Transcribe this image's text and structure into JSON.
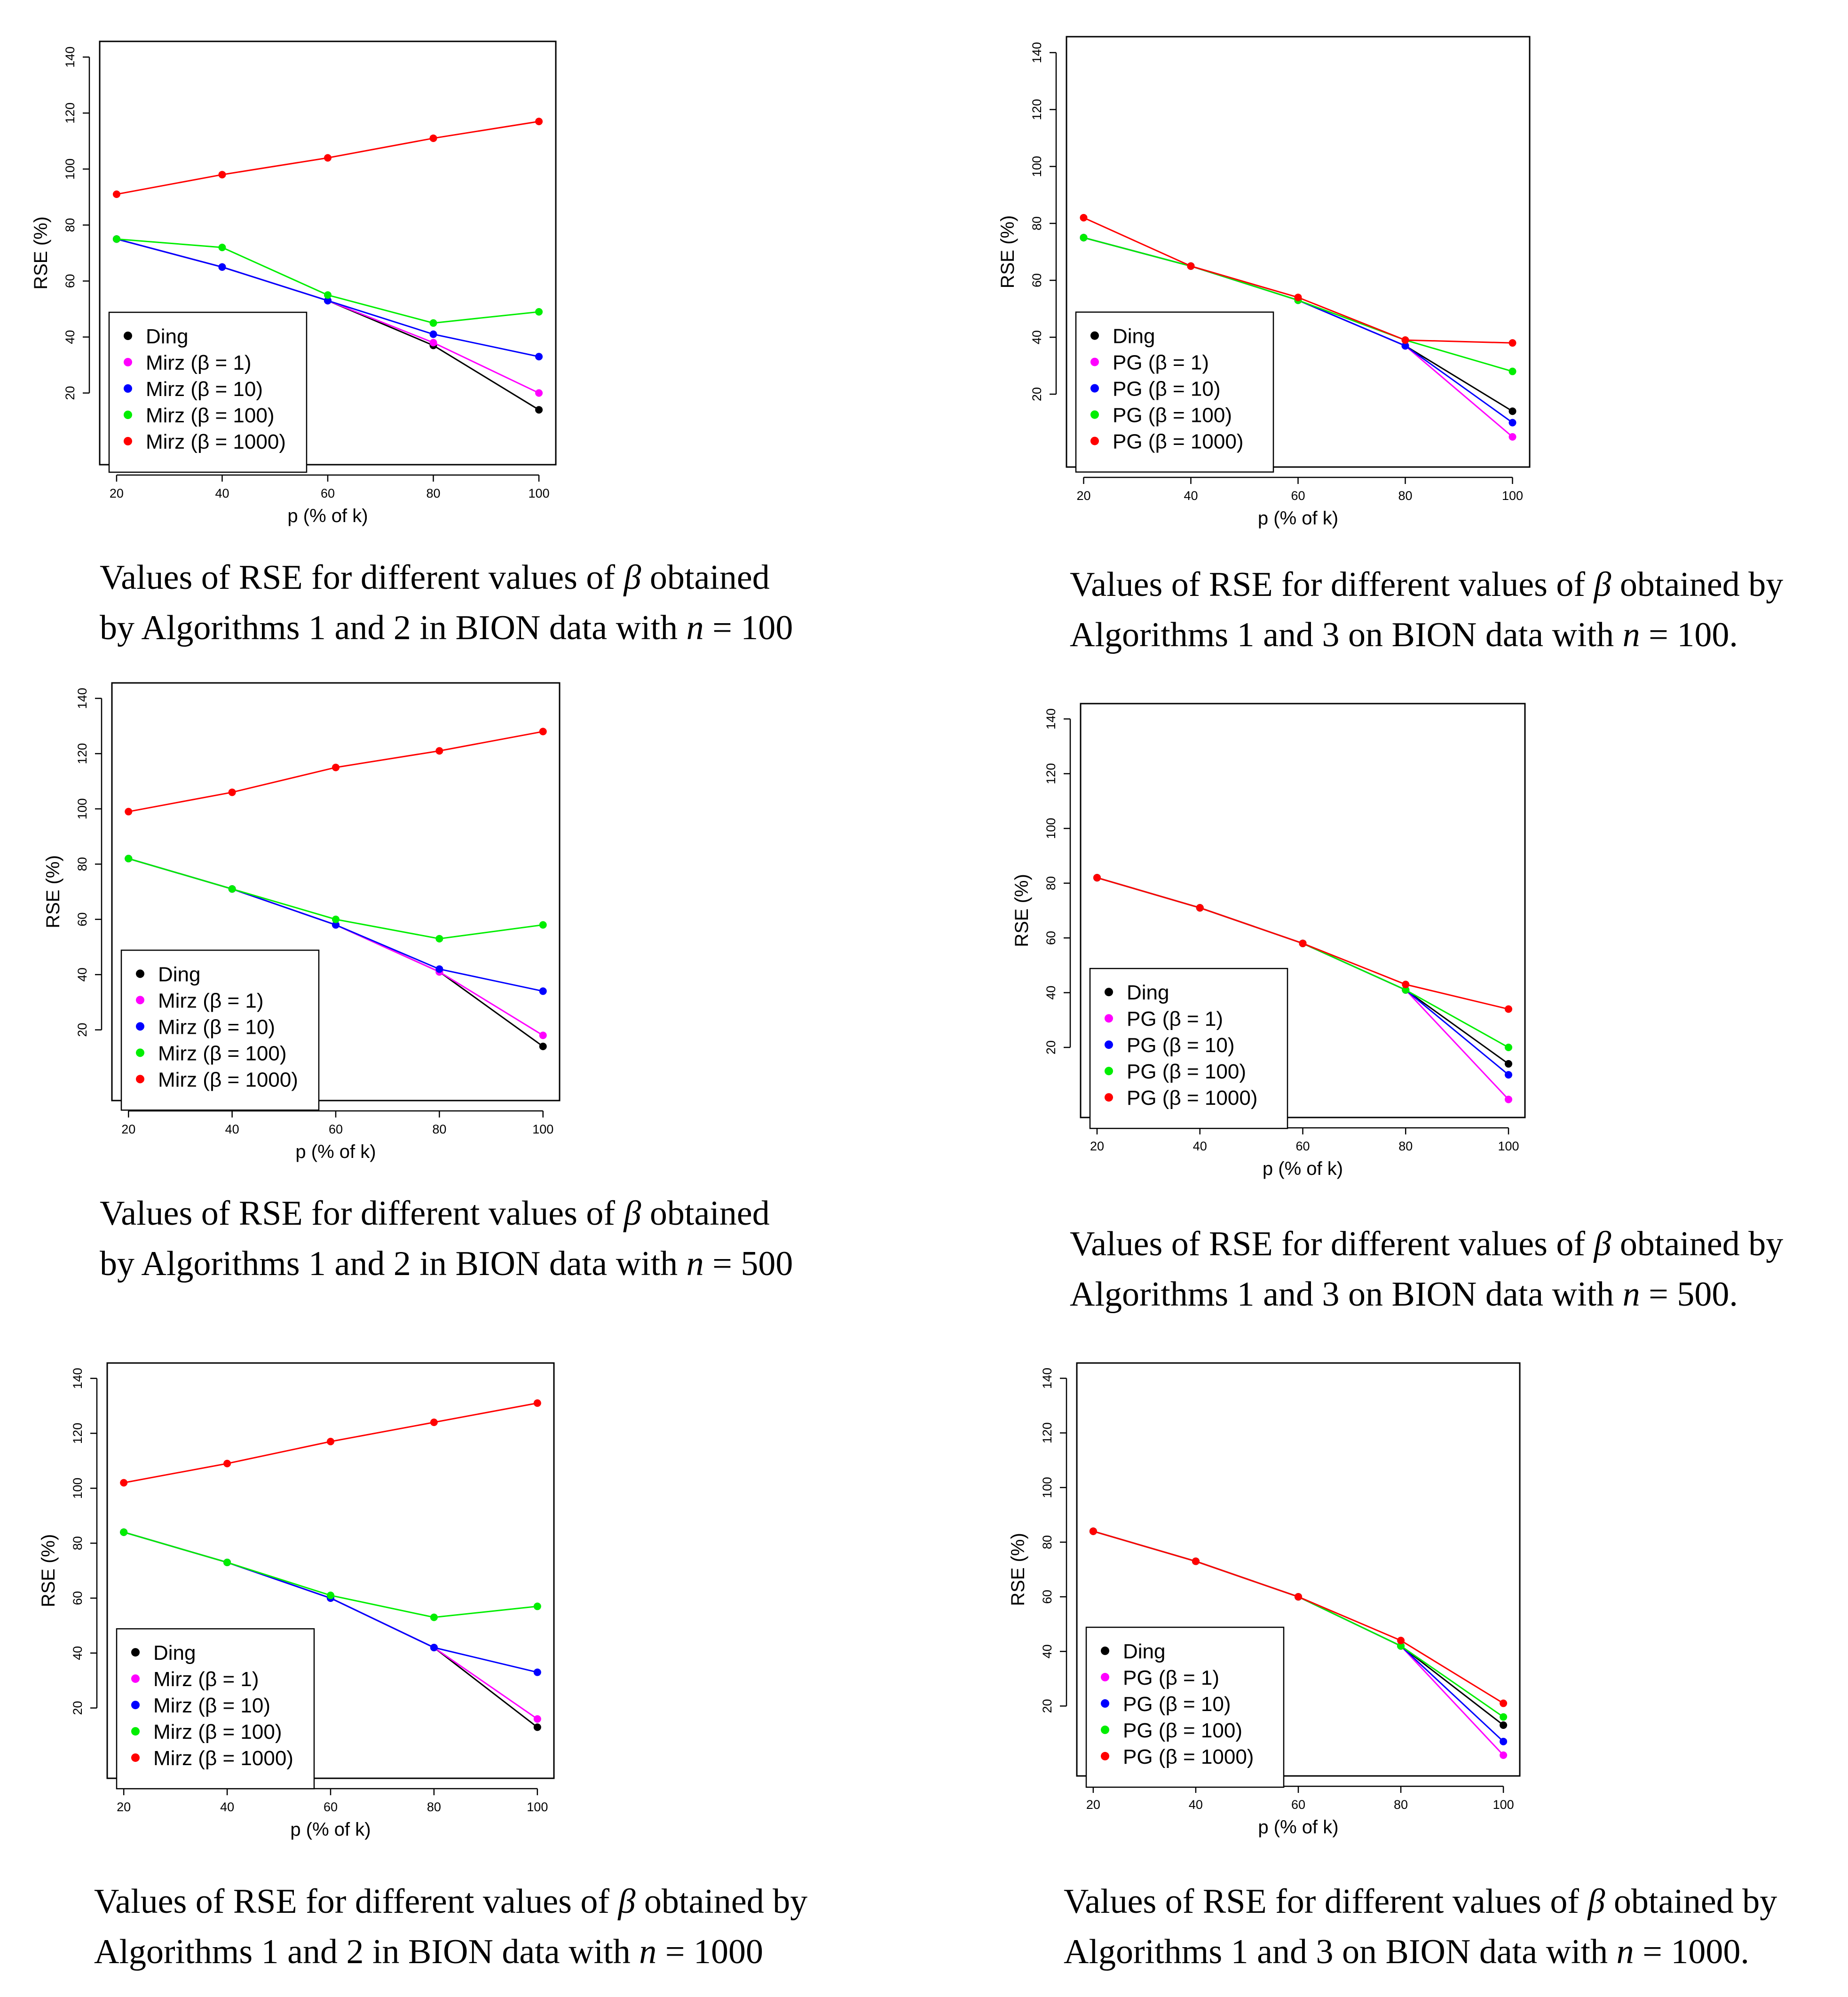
{
  "colors": {
    "Ding": "#000000",
    "b1": "#ff00ff",
    "b10": "#0000ff",
    "b100": "#00ee00",
    "b1000": "#ff0000"
  },
  "charts": [
    {
      "chart_data": {
        "type": "line",
        "xlabel": "p (% of k)",
        "ylabel": "RSE (%)",
        "x": [
          20,
          40,
          60,
          80,
          100
        ],
        "xlim": [
          20,
          100
        ],
        "ylim": [
          0,
          140
        ],
        "xticks": [
          "20",
          "40",
          "60",
          "80",
          "100"
        ],
        "yticks": [
          "20",
          "40",
          "60",
          "80",
          "100",
          "120",
          "140"
        ],
        "legend_position": "bottom-left",
        "series": [
          {
            "name": "Ding",
            "color_key": "Ding",
            "values": [
              75,
              65,
              53,
              37,
              14
            ]
          },
          {
            "name": "Mirz (β = 1)",
            "color_key": "b1",
            "values": [
              75,
              65,
              53,
              38,
              20
            ]
          },
          {
            "name": "Mirz (β = 10)",
            "color_key": "b10",
            "values": [
              75,
              65,
              53,
              41,
              33
            ]
          },
          {
            "name": "Mirz (β = 100)",
            "color_key": "b100",
            "values": [
              75,
              72,
              55,
              45,
              49
            ]
          },
          {
            "name": "Mirz (β = 1000)",
            "color_key": "b1000",
            "values": [
              91,
              98,
              104,
              111,
              117
            ]
          }
        ]
      },
      "caption": {
        "line1_pre": "Values of RSE for different values of ",
        "beta": "β",
        "line1_post": " obtained",
        "line2_pre": "by Algorithms 1 and 2 in BION data with ",
        "n": "n",
        "eq": " = 100"
      }
    },
    {
      "chart_data": {
        "type": "line",
        "xlabel": "p (% of k)",
        "ylabel": "RSE (%)",
        "x": [
          20,
          40,
          60,
          80,
          100
        ],
        "xlim": [
          20,
          100
        ],
        "ylim": [
          0,
          140
        ],
        "xticks": [
          "20",
          "40",
          "60",
          "80",
          "100"
        ],
        "yticks": [
          "20",
          "40",
          "60",
          "80",
          "100",
          "120",
          "140"
        ],
        "legend_position": "bottom-left",
        "series": [
          {
            "name": "Ding",
            "color_key": "Ding",
            "values": [
              75,
              65,
              53,
              37,
              14
            ]
          },
          {
            "name": "PG (β = 1)",
            "color_key": "b1",
            "values": [
              75,
              65,
              53,
              37,
              5
            ]
          },
          {
            "name": "PG (β = 10)",
            "color_key": "b10",
            "values": [
              75,
              65,
              53,
              37,
              10
            ]
          },
          {
            "name": "PG (β = 100)",
            "color_key": "b100",
            "values": [
              75,
              65,
              53,
              39,
              28
            ]
          },
          {
            "name": "PG (β = 1000)",
            "color_key": "b1000",
            "values": [
              82,
              65,
              54,
              39,
              38
            ]
          }
        ]
      },
      "caption": {
        "line1_pre": "Values of RSE for different values of ",
        "beta": "β",
        "line1_post": " obtained by",
        "line2_pre": "Algorithms 1 and 3 on BION data with ",
        "n": "n",
        "eq": " = 100."
      }
    },
    {
      "chart_data": {
        "type": "line",
        "xlabel": "p (% of k)",
        "ylabel": "RSE (%)",
        "x": [
          20,
          40,
          60,
          80,
          100
        ],
        "xlim": [
          20,
          100
        ],
        "ylim": [
          0,
          140
        ],
        "xticks": [
          "20",
          "40",
          "60",
          "80",
          "100"
        ],
        "yticks": [
          "20",
          "40",
          "60",
          "80",
          "100",
          "120",
          "140"
        ],
        "legend_position": "bottom-left",
        "series": [
          {
            "name": "Ding",
            "color_key": "Ding",
            "values": [
              82,
              71,
              58,
              41,
              14
            ]
          },
          {
            "name": "Mirz (β = 1)",
            "color_key": "b1",
            "values": [
              82,
              71,
              58,
              41,
              18
            ]
          },
          {
            "name": "Mirz (β = 10)",
            "color_key": "b10",
            "values": [
              82,
              71,
              58,
              42,
              34
            ]
          },
          {
            "name": "Mirz (β = 100)",
            "color_key": "b100",
            "values": [
              82,
              71,
              60,
              53,
              58
            ]
          },
          {
            "name": "Mirz (β = 1000)",
            "color_key": "b1000",
            "values": [
              99,
              106,
              115,
              121,
              128
            ]
          }
        ]
      },
      "caption": {
        "line1_pre": "Values of RSE for different values of ",
        "beta": "β",
        "line1_post": " obtained",
        "line2_pre": "by Algorithms 1 and 2 in BION data with ",
        "n": "n",
        "eq": " = 500"
      }
    },
    {
      "chart_data": {
        "type": "line",
        "xlabel": "p (% of k)",
        "ylabel": "RSE (%)",
        "x": [
          20,
          40,
          60,
          80,
          100
        ],
        "xlim": [
          20,
          100
        ],
        "ylim": [
          0,
          140
        ],
        "xticks": [
          "20",
          "40",
          "60",
          "80",
          "100"
        ],
        "yticks": [
          "20",
          "40",
          "60",
          "80",
          "100",
          "120",
          "140"
        ],
        "legend_position": "bottom-left",
        "series": [
          {
            "name": "Ding",
            "color_key": "Ding",
            "values": [
              82,
              71,
              58,
              41,
              14
            ]
          },
          {
            "name": "PG (β = 1)",
            "color_key": "b1",
            "values": [
              82,
              71,
              58,
              41,
              1
            ]
          },
          {
            "name": "PG (β = 10)",
            "color_key": "b10",
            "values": [
              82,
              71,
              58,
              41,
              10
            ]
          },
          {
            "name": "PG (β = 100)",
            "color_key": "b100",
            "values": [
              82,
              71,
              58,
              41,
              20
            ]
          },
          {
            "name": "PG (β = 1000)",
            "color_key": "b1000",
            "values": [
              82,
              71,
              58,
              43,
              34
            ]
          }
        ]
      },
      "caption": {
        "line1_pre": "Values of RSE for different values of ",
        "beta": "β",
        "line1_post": " obtained by",
        "line2_pre": "Algorithms 1 and 3 on BION data with ",
        "n": "n",
        "eq": " = 500."
      }
    },
    {
      "chart_data": {
        "type": "line",
        "xlabel": "p (% of k)",
        "ylabel": "RSE (%)",
        "x": [
          20,
          40,
          60,
          80,
          100
        ],
        "xlim": [
          20,
          100
        ],
        "ylim": [
          0,
          140
        ],
        "xticks": [
          "20",
          "40",
          "60",
          "80",
          "100"
        ],
        "yticks": [
          "20",
          "40",
          "60",
          "80",
          "100",
          "120",
          "140"
        ],
        "legend_position": "bottom-left",
        "series": [
          {
            "name": "Ding",
            "color_key": "Ding",
            "values": [
              84,
              73,
              60,
              42,
              13
            ]
          },
          {
            "name": "Mirz (β = 1)",
            "color_key": "b1",
            "values": [
              84,
              73,
              60,
              42,
              16
            ]
          },
          {
            "name": "Mirz (β = 10)",
            "color_key": "b10",
            "values": [
              84,
              73,
              60,
              42,
              33
            ]
          },
          {
            "name": "Mirz (β = 100)",
            "color_key": "b100",
            "values": [
              84,
              73,
              61,
              53,
              57
            ]
          },
          {
            "name": "Mirz (β = 1000)",
            "color_key": "b1000",
            "values": [
              102,
              109,
              117,
              124,
              131
            ]
          }
        ]
      },
      "caption": {
        "line1_pre": "Values of RSE for different values of ",
        "beta": "β",
        "line1_post": " obtained by",
        "line2_pre": "Algorithms 1 and 2 in BION data with ",
        "n": "n",
        "eq": " = 1000"
      }
    },
    {
      "chart_data": {
        "type": "line",
        "xlabel": "p (% of k)",
        "ylabel": "RSE (%)",
        "x": [
          20,
          40,
          60,
          80,
          100
        ],
        "xlim": [
          20,
          100
        ],
        "ylim": [
          0,
          140
        ],
        "xticks": [
          "20",
          "40",
          "60",
          "80",
          "100"
        ],
        "yticks": [
          "20",
          "40",
          "60",
          "80",
          "100",
          "120",
          "140"
        ],
        "legend_position": "bottom-left",
        "series": [
          {
            "name": "Ding",
            "color_key": "Ding",
            "values": [
              84,
              73,
              60,
              42,
              13
            ]
          },
          {
            "name": "PG (β = 1)",
            "color_key": "b1",
            "values": [
              84,
              73,
              60,
              42,
              2
            ]
          },
          {
            "name": "PG (β = 10)",
            "color_key": "b10",
            "values": [
              84,
              73,
              60,
              42,
              7
            ]
          },
          {
            "name": "PG (β = 100)",
            "color_key": "b100",
            "values": [
              84,
              73,
              60,
              42,
              16
            ]
          },
          {
            "name": "PG (β = 1000)",
            "color_key": "b1000",
            "values": [
              84,
              73,
              60,
              44,
              21
            ]
          }
        ]
      },
      "caption": {
        "line1_pre": "Values of RSE for different values of ",
        "beta": "β",
        "line1_post": " obtained by",
        "line2_pre": "Algorithms 1 and 3 on BION data with ",
        "n": "n",
        "eq": " = 1000."
      }
    }
  ]
}
